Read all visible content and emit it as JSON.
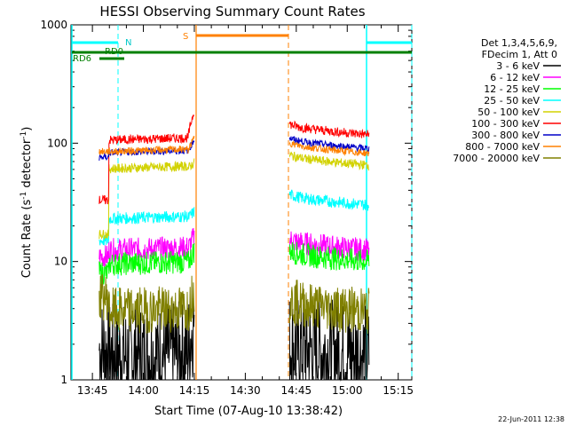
{
  "chart_data": {
    "type": "line",
    "title": "HESSI Observing Summary Count Rates",
    "xlabel": "Start Time (07-Aug-10 13:38:42)",
    "ylabel_main": "Count Rate (s",
    "ylabel_sup1": "-1",
    "ylabel_mid": " detector",
    "ylabel_sup2": "-1",
    "ylabel_end": ")",
    "y_scale": "log",
    "ylim": [
      1,
      1000
    ],
    "xlim": [
      "13:38:42",
      "15:19:00"
    ],
    "xlim_min": [
      818.7,
      919.0
    ],
    "x_ticks": [
      {
        "label": "13:45",
        "min": 825
      },
      {
        "label": "14:00",
        "min": 840
      },
      {
        "label": "14:15",
        "min": 855
      },
      {
        "label": "14:30",
        "min": 870
      },
      {
        "label": "14:45",
        "min": 885
      },
      {
        "label": "15:00",
        "min": 900
      },
      {
        "label": "15:15",
        "min": 915
      }
    ],
    "y_ticks": [
      {
        "label": "1",
        "value": 1
      },
      {
        "label": "10",
        "value": 10
      },
      {
        "label": "100",
        "value": 100
      },
      {
        "label": "1000",
        "value": 1000
      }
    ],
    "legend_position": "right",
    "legend_header": [
      "Det 1,3,4,5,6,9,",
      "FDecim 1, Att 0"
    ],
    "segments": [
      {
        "start": "13:47:00",
        "end": "14:15:00",
        "start_min": 827.0,
        "end_min": 855.0,
        "break_min": 829.8
      },
      {
        "start": "14:43:00",
        "end": "15:06:30",
        "start_min": 883.0,
        "end_min": 906.5,
        "break_min": 0
      }
    ],
    "series": [
      {
        "name": "3 - 6 keV",
        "color": "#000000",
        "level_pre": 1.8,
        "level_a": 1.6,
        "level_b": 1.6,
        "rise": 2.0,
        "noise": 0.45
      },
      {
        "name": "6 - 12 keV",
        "color": "#ff00ff",
        "level_pre": 11,
        "level_a": 12.5,
        "level_b": 12.5,
        "rise": 1.3,
        "noise": 0.1
      },
      {
        "name": "12 - 25 keV",
        "color": "#00ff00",
        "level_pre": 8,
        "level_a": 9.5,
        "level_b": 10,
        "rise": 1.3,
        "noise": 0.1
      },
      {
        "name": "25 - 50 keV",
        "color": "#00ffff",
        "level_pre": 15,
        "level_a": 23,
        "level_b": 30,
        "rise": 1.15,
        "noise": 0.05
      },
      {
        "name": "50 - 100 keV",
        "color": "#d2d200",
        "level_pre": 17,
        "level_a": 61,
        "level_b": 65,
        "rise": 1.12,
        "noise": 0.04
      },
      {
        "name": "100 - 300 keV",
        "color": "#ff0000",
        "level_pre": 33,
        "level_a": 106,
        "level_b": 118,
        "rise": 1.8,
        "noise": 0.04
      },
      {
        "name": "300 - 800 keV",
        "color": "#0000c8",
        "level_pre": 76,
        "level_a": 83,
        "level_b": 90,
        "rise": 1.3,
        "noise": 0.03
      },
      {
        "name": "800 - 7000 keV",
        "color": "#ff8000",
        "level_pre": 85,
        "level_a": 85,
        "level_b": 82,
        "rise": 1.3,
        "noise": 0.03
      },
      {
        "name": "7000 - 20000 keV",
        "color": "#808000",
        "level_pre": 5,
        "level_a": 3.8,
        "level_b": 3.8,
        "rise": 1.5,
        "noise": 0.2
      }
    ],
    "annotations": [
      {
        "label": "N",
        "type": "cyan-flag"
      },
      {
        "label": "RD0",
        "type": "bar"
      },
      {
        "label": "RD6",
        "type": "bar"
      },
      {
        "label": "S",
        "type": "orange-flag"
      }
    ],
    "footer_date": "22-Jun-2011 12:38"
  }
}
